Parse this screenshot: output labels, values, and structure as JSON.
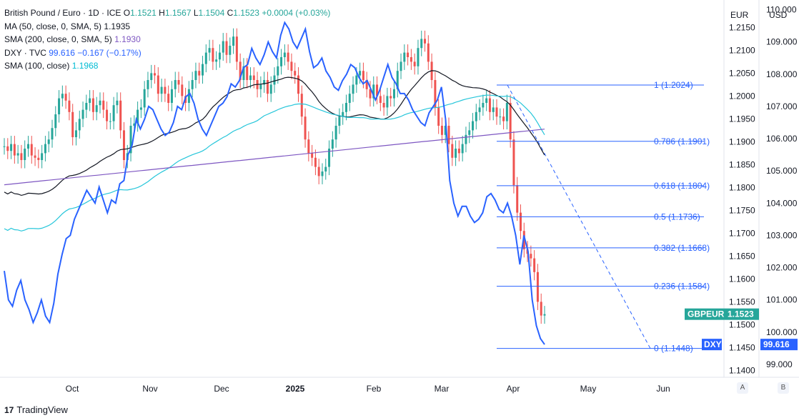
{
  "legend": {
    "title": "British Pound / Euro · 1D · ICE",
    "o_label": "O",
    "o": "1.1521",
    "h_label": "H",
    "h": "1.1567",
    "l_label": "L",
    "l": "1.1504",
    "c_label": "C",
    "c": "1.1523",
    "change": "+0.0004 (+0.03%)",
    "ma50_label": "MA (50, close, 0, SMA, 5)",
    "ma50_value": "1.1935",
    "sma200_label": "SMA (200, close, 0, SMA, 5)",
    "sma200_value": "1.1930",
    "dxy_label": "DXY · TVC",
    "dxy_value": "99.616",
    "dxy_change": "−0.167 (−0.17%)",
    "sma100_label": "SMA (100, close)",
    "sma100_value": "1.1968"
  },
  "scales": {
    "left_unit": "EUR",
    "right_unit": "USD",
    "btn_a": "A",
    "btn_b": "B"
  },
  "brand": {
    "name": "TradingView",
    "logo": "17"
  },
  "colors": {
    "up": "#26a69a",
    "down": "#ef5350",
    "dxy": "#2962ff",
    "ma50": "#131722",
    "sma100": "#26c6da",
    "sma200": "#7e57c2",
    "fib": "#2962ff"
  },
  "chart_data": {
    "type": "line",
    "x_ticks": [
      "Oct",
      "Nov",
      "Dec",
      "2025",
      "Feb",
      "Mar",
      "Apr",
      "May",
      "Jun"
    ],
    "y_left_ticks": [
      "1.2150",
      "1.2100",
      "1.2050",
      "1.2000",
      "1.1950",
      "1.1900",
      "1.1850",
      "1.1800",
      "1.1750",
      "1.1700",
      "1.1650",
      "1.1600",
      "1.1550",
      "1.1500",
      "1.1450",
      "1.1400"
    ],
    "y_right_ticks": [
      "110.000",
      "109.000",
      "108.000",
      "107.000",
      "106.000",
      "105.000",
      "104.000",
      "103.000",
      "102.000",
      "101.000",
      "100.000",
      "99.000"
    ],
    "ylim_left": [
      1.1385,
      1.221
    ],
    "ylim_right": [
      98.6,
      110.3
    ],
    "last_labels": {
      "gbpeur_name": "GBPEUR",
      "gbpeur_value": "1.1523",
      "dxy_name": "DXY",
      "dxy_value": "99.616"
    },
    "fib_levels": [
      {
        "label": "1 (1.2024)",
        "value": 1.2024
      },
      {
        "label": "0.786 (1.1901)",
        "value": 1.1901
      },
      {
        "label": "0.618 (1.1804)",
        "value": 1.1804
      },
      {
        "label": "0.5 (1.1736)",
        "value": 1.1736
      },
      {
        "label": "0.382 (1.1668)",
        "value": 1.1668
      },
      {
        "label": "0.236 (1.1584)",
        "value": 1.1584
      },
      {
        "label": "0 (1.1448)",
        "value": 1.1448
      }
    ],
    "series": [
      {
        "name": "GBPEUR",
        "values": [
          1.189,
          1.188,
          1.1895,
          1.187,
          1.1875,
          1.186,
          1.1885,
          1.1895,
          1.187,
          1.1865,
          1.186,
          1.1875,
          1.1895,
          1.1905,
          1.193,
          1.196,
          1.1995,
          1.2005,
          1.199,
          1.1965,
          1.191,
          1.1925,
          1.195,
          1.197,
          1.1985,
          1.1995,
          1.1965,
          1.198,
          1.199,
          1.197,
          1.1945,
          1.1945,
          1.198,
          1.199,
          1.1925,
          1.186,
          1.1875,
          1.1935,
          1.194,
          1.197,
          1.1975,
          1.2015,
          1.2035,
          1.205,
          1.2045,
          1.2005,
          1.202,
          1.2005,
          1.1985,
          1.2015,
          1.2035,
          1.2025,
          1.2,
          1.1985,
          1.2015,
          1.2035,
          1.2055,
          1.2045,
          1.207,
          1.2095,
          1.2105,
          1.2075,
          1.208,
          1.2095,
          1.212,
          1.209,
          1.211,
          1.213,
          1.2075,
          1.2035,
          1.2065,
          1.2035,
          1.2045,
          1.2035,
          1.2015,
          1.2025,
          1.2035,
          1.2005,
          1.2025,
          1.2045,
          1.2065,
          1.2085,
          1.2095,
          1.2075,
          1.2055,
          1.2045,
          1.2005,
          1.1955,
          1.1905,
          1.1875,
          1.1865,
          1.1845,
          1.1825,
          1.1835,
          1.1845,
          1.1885,
          1.1905,
          1.1935,
          1.1955,
          1.1965,
          1.1985,
          1.2005,
          1.2025,
          1.2045,
          1.2055,
          1.2035,
          1.2015,
          1.1995,
          1.2025,
          1.2,
          1.1985,
          1.1975,
          1.2,
          1.1995,
          1.2015,
          1.2055,
          1.2075,
          1.2095,
          1.2085,
          1.2075,
          1.2065,
          1.2105,
          1.2125,
          1.2115,
          1.2075,
          1.2035,
          1.1975,
          1.1935,
          1.1915,
          1.1935,
          1.1895,
          1.1865,
          1.1885,
          1.1875,
          1.1895,
          1.1915,
          1.1925,
          1.1945,
          1.1965,
          1.1975,
          1.1985,
          1.1995,
          1.1965,
          1.1975,
          1.1955,
          1.1955,
          1.1945,
          1.1985,
          1.1905,
          1.1805,
          1.1745,
          1.1705,
          1.1665,
          1.1655,
          1.1645,
          1.1615,
          1.155,
          1.152,
          1.1523
        ]
      },
      {
        "name": "DXY",
        "values": [
          101.9,
          101.0,
          100.8,
          101.3,
          101.6,
          101.0,
          100.7,
          100.3,
          100.6,
          101.0,
          100.5,
          100.3,
          100.9,
          101.8,
          102.4,
          102.9,
          103.0,
          103.5,
          103.8,
          104.1,
          104.4,
          104.2,
          104.0,
          104.5,
          104.1,
          103.7,
          104.1,
          104.0,
          104.6,
          104.7,
          105.5,
          105.8,
          106.6,
          106.3,
          106.6,
          107.0,
          106.9,
          106.6,
          106.3,
          106.1,
          106.2,
          106.5,
          107.0,
          106.9,
          107.3,
          107.4,
          107.1,
          106.6,
          106.3,
          106.1,
          106.4,
          106.7,
          107.0,
          107.1,
          107.3,
          107.7,
          107.6,
          107.8,
          108.2,
          108.3,
          108.8,
          108.5,
          108.3,
          108.6,
          109.0,
          108.7,
          108.5,
          109.2,
          109.6,
          109.4,
          109.0,
          108.8,
          109.1,
          109.4,
          108.7,
          108.2,
          108.3,
          108.5,
          108.1,
          107.9,
          107.6,
          107.5,
          107.8,
          108.0,
          108.3,
          108.2,
          107.9,
          107.7,
          107.8,
          107.5,
          107.2,
          107.5,
          107.9,
          108.3,
          107.9,
          107.7,
          107.4,
          107.4,
          107.2,
          106.9,
          106.7,
          106.5,
          106.4,
          106.8,
          107.0,
          107.2,
          107.6,
          106.6,
          104.7,
          104.0,
          103.6,
          103.9,
          103.9,
          103.6,
          103.4,
          103.5,
          103.7,
          104.2,
          104.3,
          104.1,
          103.8,
          103.7,
          104.0,
          103.6,
          103.0,
          102.1,
          103.0,
          102.5,
          101.0,
          100.2,
          99.8,
          99.616
        ]
      }
    ]
  }
}
